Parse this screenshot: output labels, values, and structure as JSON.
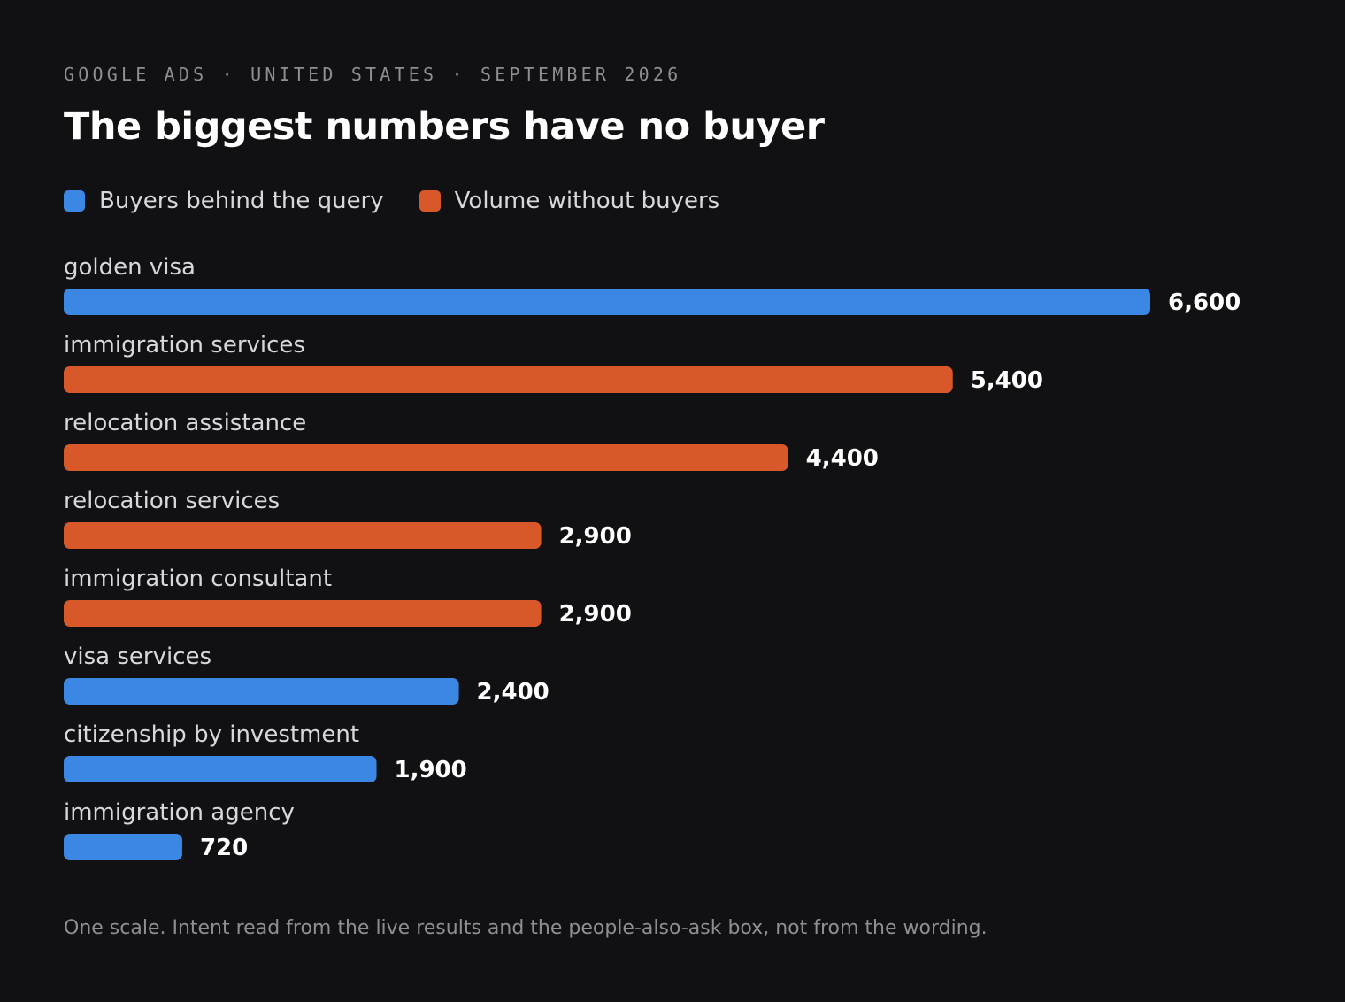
{
  "header": {
    "eyebrow": "GOOGLE ADS · UNITED STATES · SEPTEMBER 2026",
    "title": "The biggest numbers have no buyer"
  },
  "legend": {
    "items": [
      {
        "label": "Buyers behind the query",
        "color": "#3b87e4"
      },
      {
        "label": "Volume without buyers",
        "color": "#d9582a"
      }
    ]
  },
  "chart_data": {
    "type": "bar",
    "orientation": "horizontal",
    "title": "The biggest numbers have no buyer",
    "xlim": [
      0,
      6600
    ],
    "grid": false,
    "legend_position": "top-left",
    "series": [
      {
        "name": "Buyers behind the query",
        "color": "#3b87e4"
      },
      {
        "name": "Volume without buyers",
        "color": "#d9582a"
      }
    ],
    "categories": [
      "golden visa",
      "immigration services",
      "relocation assistance",
      "relocation services",
      "immigration consultant",
      "visa services",
      "citizenship by investment",
      "immigration agency"
    ],
    "values": [
      6600,
      5400,
      4400,
      2900,
      2900,
      2400,
      1900,
      720
    ],
    "value_labels": [
      "6,600",
      "5,400",
      "4,400",
      "2,900",
      "2,900",
      "2,400",
      "1,900",
      "720"
    ],
    "series_membership": [
      "Buyers behind the query",
      "Volume without buyers",
      "Volume without buyers",
      "Volume without buyers",
      "Volume without buyers",
      "Buyers behind the query",
      "Buyers behind the query",
      "Buyers behind the query"
    ]
  },
  "footnote": "One scale. Intent read from the live results and the people-also-ask box, not from the wording."
}
